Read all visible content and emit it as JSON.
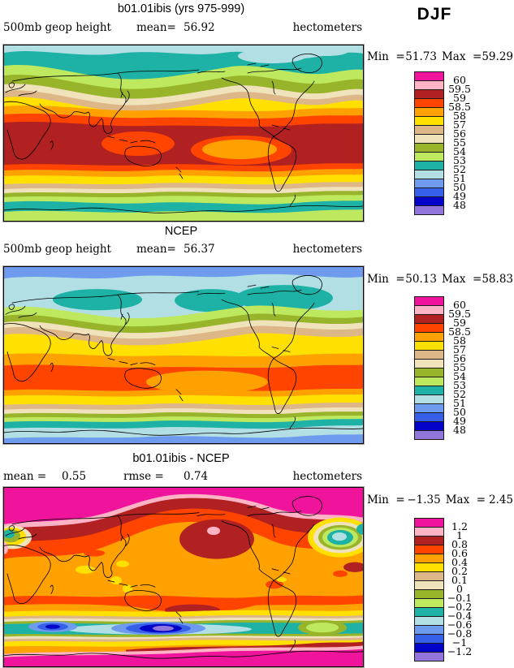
{
  "season_label": "DJF",
  "palette": {
    "comment": "colorbar swatch colors, top (highest value) to bottom (lowest)",
    "colors": [
      "#F0149C",
      "#FFB3C4",
      "#B12121",
      "#FF4400",
      "#FFA100",
      "#FFE000",
      "#DDB787",
      "#F0E3BC",
      "#98B42A",
      "#BEE95F",
      "#1EB2A6",
      "#B2DFE4",
      "#6F9BEF",
      "#3760E8",
      "#0103C8",
      "#9174DC"
    ]
  },
  "panels": [
    {
      "title": "b01.01ibis (yrs 975-999)",
      "left_label": "500mb geop height",
      "mean_label": "mean=",
      "mean": "56.92",
      "units": "hectometers",
      "min_label": "Min  =",
      "min": "51.73",
      "max_label": "Max  =",
      "max": "59.29",
      "ticks": [
        "60",
        "59.5",
        "59",
        "58.5",
        "58",
        "57",
        "56",
        "55",
        "54",
        "53",
        "52",
        "51",
        "50",
        "49",
        "48"
      ]
    },
    {
      "title": "NCEP",
      "left_label": "500mb geop height",
      "mean_label": "mean=",
      "mean": "56.37",
      "units": "hectometers",
      "min_label": "Min  =",
      "min": "50.13",
      "max_label": "Max  =",
      "max": "58.83",
      "ticks": [
        "60",
        "59.5",
        "59",
        "58.5",
        "58",
        "57",
        "56",
        "55",
        "54",
        "53",
        "52",
        "51",
        "50",
        "49",
        "48"
      ]
    },
    {
      "title": "b01.01ibis - NCEP",
      "mean_label": "mean  =",
      "mean": "0.55",
      "rmse_label": "rmse  =",
      "rmse": "0.74",
      "units": "hectometers",
      "min_label": "Min  =",
      "min": "−1.35",
      "max_label": "Max  =",
      "max": "2.45",
      "ticks": [
        "1.2",
        "1",
        "0.8",
        "0.6",
        "0.4",
        "0.2",
        "0.1",
        "0",
        "−0.1",
        "−0.2",
        "−0.4",
        "−0.6",
        "−0.8",
        "−1",
        "−1.2"
      ]
    }
  ],
  "chart_data": [
    {
      "type": "heatmap",
      "subtype": "filled-contour world map, equirectangular, Pacific-centered",
      "title": "b01.01ibis (yrs 975-999)",
      "season": "DJF",
      "variable": "500mb geop height",
      "units": "hectometers",
      "mean": 56.92,
      "min": 51.73,
      "max": 59.29,
      "contour_levels": [
        48,
        49,
        50,
        51,
        52,
        53,
        54,
        55,
        56,
        57,
        58,
        58.5,
        59,
        59.5,
        60
      ],
      "legend_position": "right",
      "pattern": "zonal bands: teal/pale-blue polar north, green-tan-yellow midlatitudes, broad dark-red tropical band with orange minima over Indonesia and east Pacific, teal band and light green over Antarctica"
    },
    {
      "type": "heatmap",
      "subtype": "filled-contour world map, equirectangular, Pacific-centered",
      "title": "NCEP",
      "season": "DJF",
      "variable": "500mb geop height",
      "units": "hectometers",
      "mean": 56.37,
      "min": 50.13,
      "max": 58.83,
      "contour_levels": [
        48,
        49,
        50,
        51,
        52,
        53,
        54,
        55,
        56,
        57,
        58,
        58.5,
        59,
        59.5,
        60
      ],
      "legend_position": "right",
      "pattern": "cornflower-blue polar caps north and south, light-blue/teal high latitudes, orange-red tropical band with orange core over central Pacific"
    },
    {
      "type": "heatmap",
      "subtype": "filled-contour difference map, equirectangular, Pacific-centered",
      "title": "b01.01ibis - NCEP",
      "season": "DJF",
      "units": "hectometers",
      "mean": 0.55,
      "rmse": 0.74,
      "min": -1.35,
      "max": 2.45,
      "contour_levels": [
        -1.2,
        -1,
        -0.8,
        -0.6,
        -0.4,
        -0.2,
        -0.1,
        0,
        0.1,
        0.2,
        0.4,
        0.6,
        0.8,
        1,
        1.2
      ],
      "legend_position": "right",
      "pattern": "magenta >1.2 bands along top and bottom edges, dark-red/orange-red arc across high northern latitudes with maximum over Alaska, dominant orange background, negative ring band over Southern Ocean with deep blue/purple minimum south of New Zealand, negative ovals over North Atlantic"
    }
  ]
}
